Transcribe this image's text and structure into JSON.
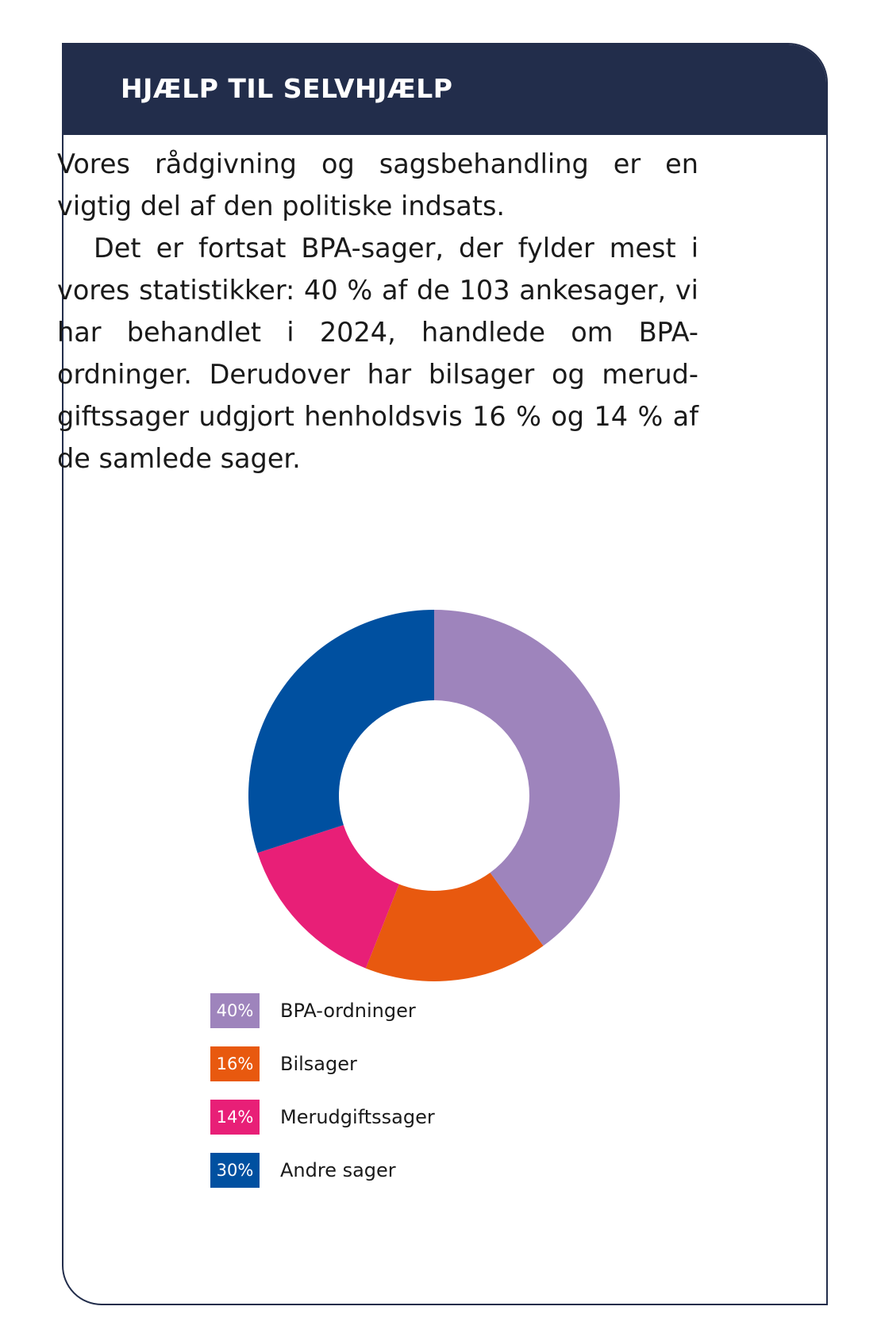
{
  "header": {
    "title": "HJÆLP TIL SELVHJÆLP"
  },
  "body": {
    "paragraph1": "Vores rådgivning og sagsbehandling er en vigtig del af den politiske indsats.",
    "paragraph2": "Det er fortsat BPA-sager, der fylder mest i vores statistikker: 40 % af de 103 ankesager, vi har behandlet i 2024, handlede om BPA-ordninger. Derudover har bilsager og merud-giftssager udgjort henholdsvis 16 % og 14 % af de samlede sager."
  },
  "colors": {
    "header_bg": "#222d4b",
    "border": "#222d4b"
  },
  "chart_data": {
    "type": "pie",
    "variant": "donut",
    "start_angle": "top",
    "direction": "clockwise",
    "categories": [
      "BPA-ordninger",
      "Bilsager",
      "Merudgiftssager",
      "Andre sager"
    ],
    "values": [
      40,
      16,
      14,
      30
    ],
    "value_labels": [
      "40%",
      "16%",
      "14%",
      "30%"
    ],
    "colors": [
      "#9e84bc",
      "#e8590f",
      "#e81f77",
      "#0050a0"
    ],
    "legend": "bottom"
  }
}
